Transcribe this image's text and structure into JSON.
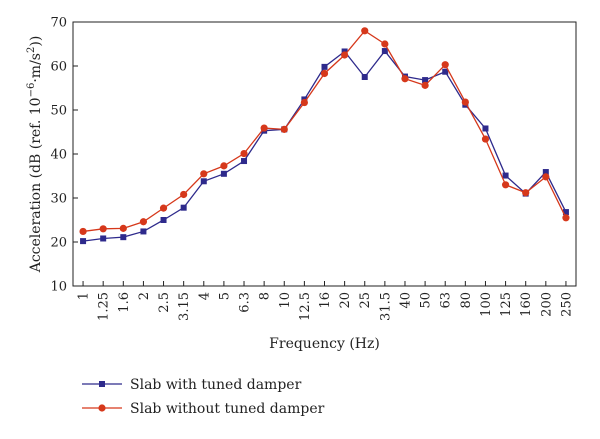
{
  "chart_data": {
    "type": "line",
    "xlabel": "Frequency (Hz)",
    "ylabel": {
      "prefix": "Acceleration (dB (ref. 10",
      "sup1": "−6",
      "mid": "·m/s",
      "sup2": "2",
      "suffix": "))"
    },
    "ylim": [
      10,
      70
    ],
    "yticks": [
      "10",
      "20",
      "30",
      "40",
      "50",
      "60",
      "70"
    ],
    "categories": [
      "1",
      "1.25",
      "1.6",
      "2",
      "2.5",
      "3.15",
      "4",
      "5",
      "6.3",
      "8",
      "10",
      "12.5",
      "16",
      "20",
      "25",
      "31.5",
      "40",
      "50",
      "63",
      "80",
      "100",
      "125",
      "160",
      "200",
      "250"
    ],
    "grid": false,
    "legend_position": "bottom-left",
    "series": [
      {
        "name": "Slab with tuned damper",
        "color": "#2e2a8c",
        "marker": "square",
        "values": [
          20.2,
          20.8,
          21.1,
          22.4,
          25.0,
          27.8,
          33.8,
          35.5,
          38.4,
          45.3,
          45.6,
          52.4,
          59.8,
          63.3,
          57.5,
          63.4,
          57.6,
          56.8,
          58.7,
          51.2,
          45.8,
          35.1,
          31.0,
          35.9,
          26.8
        ]
      },
      {
        "name": "Slab without tuned damper",
        "color": "#d6381b",
        "marker": "circle",
        "values": [
          22.4,
          23.0,
          23.1,
          24.6,
          27.7,
          30.8,
          35.5,
          37.3,
          40.1,
          45.9,
          45.6,
          51.7,
          58.3,
          62.5,
          68.0,
          65.0,
          57.1,
          55.6,
          60.3,
          51.8,
          43.4,
          33.0,
          31.2,
          34.8,
          25.5
        ]
      }
    ]
  }
}
